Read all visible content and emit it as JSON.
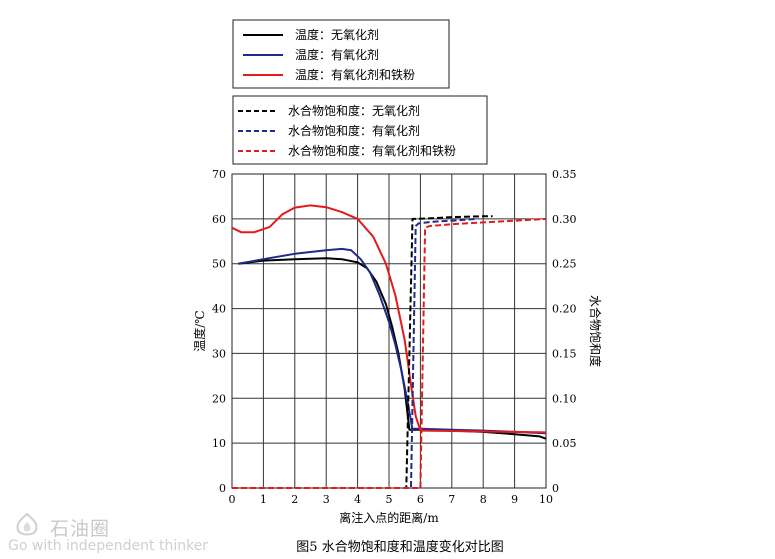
{
  "chart_data": {
    "type": "line",
    "title": "图5   水合物饱和度和温度变化对比图",
    "xlabel": "离注入点的距离/m",
    "ylabel_left": "温度/℃",
    "ylabel_right": "水合物饱和度",
    "xlim": [
      0,
      10
    ],
    "ylim_left": [
      0,
      70
    ],
    "ylim_right": [
      0,
      0.35
    ],
    "x_ticks": [
      "0",
      "1",
      "2",
      "3",
      "4",
      "5",
      "6",
      "7",
      "8",
      "9",
      "10"
    ],
    "y_left_ticks": [
      "0",
      "10",
      "20",
      "30",
      "40",
      "50",
      "60",
      "70"
    ],
    "y_right_ticks": [
      "0",
      "0.05",
      "0.10",
      "0.15",
      "0.20",
      "0.25",
      "0.30",
      "0.35"
    ],
    "grid": true,
    "legend_placement": "top-center",
    "series": [
      {
        "name": "温度：无氧化剂",
        "axis": "left",
        "style": "solid",
        "color": "#000000",
        "x": [
          0.2,
          1,
          2,
          3,
          3.5,
          4,
          4.3,
          4.6,
          4.9,
          5.1,
          5.3,
          5.5,
          5.6,
          5.65,
          5.7,
          6,
          7,
          8,
          9,
          9.8,
          10
        ],
        "y": [
          50,
          50.7,
          51,
          51.2,
          51,
          50.3,
          49,
          46,
          41,
          36,
          30,
          22,
          16,
          13,
          13,
          13,
          12.8,
          12.5,
          12,
          11.5,
          11
        ]
      },
      {
        "name": "温度：有氧化剂",
        "axis": "left",
        "style": "solid",
        "color": "#1f2a8a",
        "x": [
          0.2,
          1,
          2,
          3,
          3.5,
          3.8,
          4.1,
          4.4,
          4.7,
          5.0,
          5.2,
          5.4,
          5.6,
          5.75,
          5.8,
          6,
          7,
          8,
          9,
          10
        ],
        "y": [
          50,
          51,
          52.2,
          53,
          53.3,
          53,
          51,
          48,
          43,
          37,
          32,
          26,
          19,
          13,
          13.2,
          13.2,
          13,
          12.8,
          12.5,
          12.2
        ]
      },
      {
        "name": "温度：有氧化剂和铁粉",
        "axis": "left",
        "style": "solid",
        "color": "#e41a1c",
        "x": [
          0,
          0.3,
          0.7,
          1.2,
          1.6,
          2,
          2.5,
          3,
          3.5,
          4,
          4.5,
          4.9,
          5.2,
          5.5,
          5.7,
          5.85,
          6.0,
          6.05,
          6.1,
          7,
          8,
          9,
          10
        ],
        "y": [
          58,
          57,
          57,
          58.2,
          61,
          62.5,
          63,
          62.6,
          61.5,
          60,
          56,
          50,
          43,
          33,
          23,
          16,
          12.8,
          12.8,
          12.8,
          12.7,
          12.6,
          12.5,
          12.4
        ]
      },
      {
        "name": "水合物饱和度：无氧化剂",
        "axis": "right",
        "style": "dashed",
        "color": "#000000",
        "x": [
          0,
          5.4,
          5.55,
          5.75,
          5.85,
          6.5,
          7,
          8,
          8.3
        ],
        "y": [
          0,
          0,
          0,
          0.3,
          0.3,
          0.301,
          0.302,
          0.303,
          0.303
        ]
      },
      {
        "name": "水合物饱和度：有氧化剂",
        "axis": "right",
        "style": "dashed",
        "color": "#1f2a8a",
        "x": [
          0,
          5.6,
          5.7,
          5.85,
          5.95,
          6.5,
          7,
          7.8
        ],
        "y": [
          0,
          0,
          0,
          0.292,
          0.295,
          0.297,
          0.298,
          0.3
        ]
      },
      {
        "name": "水合物饱和度：有氧化剂和铁粉",
        "axis": "right",
        "style": "dashed",
        "color": "#e41a1c",
        "x": [
          0,
          5.95,
          6.0,
          6.15,
          6.3,
          7,
          8,
          9,
          10
        ],
        "y": [
          0,
          0,
          0,
          0.29,
          0.292,
          0.294,
          0.296,
          0.298,
          0.3
        ]
      }
    ]
  },
  "legend_box_1": [
    {
      "label": "温度：无氧化剂",
      "color": "#000000",
      "style": "solid"
    },
    {
      "label": "温度：有氧化剂",
      "color": "#1f2a8a",
      "style": "solid"
    },
    {
      "label": "温度：有氧化剂和铁粉",
      "color": "#e41a1c",
      "style": "solid"
    }
  ],
  "legend_box_2": [
    {
      "label": "水合物饱和度：无氧化剂",
      "color": "#000000",
      "style": "dashed"
    },
    {
      "label": "水合物饱和度：有氧化剂",
      "color": "#1f2a8a",
      "style": "dashed"
    },
    {
      "label": "水合物饱和度：有氧化剂和铁粉",
      "color": "#e41a1c",
      "style": "dashed"
    }
  ],
  "watermark": {
    "brand": "石油圈",
    "slogan": "Go with independent thinker"
  }
}
